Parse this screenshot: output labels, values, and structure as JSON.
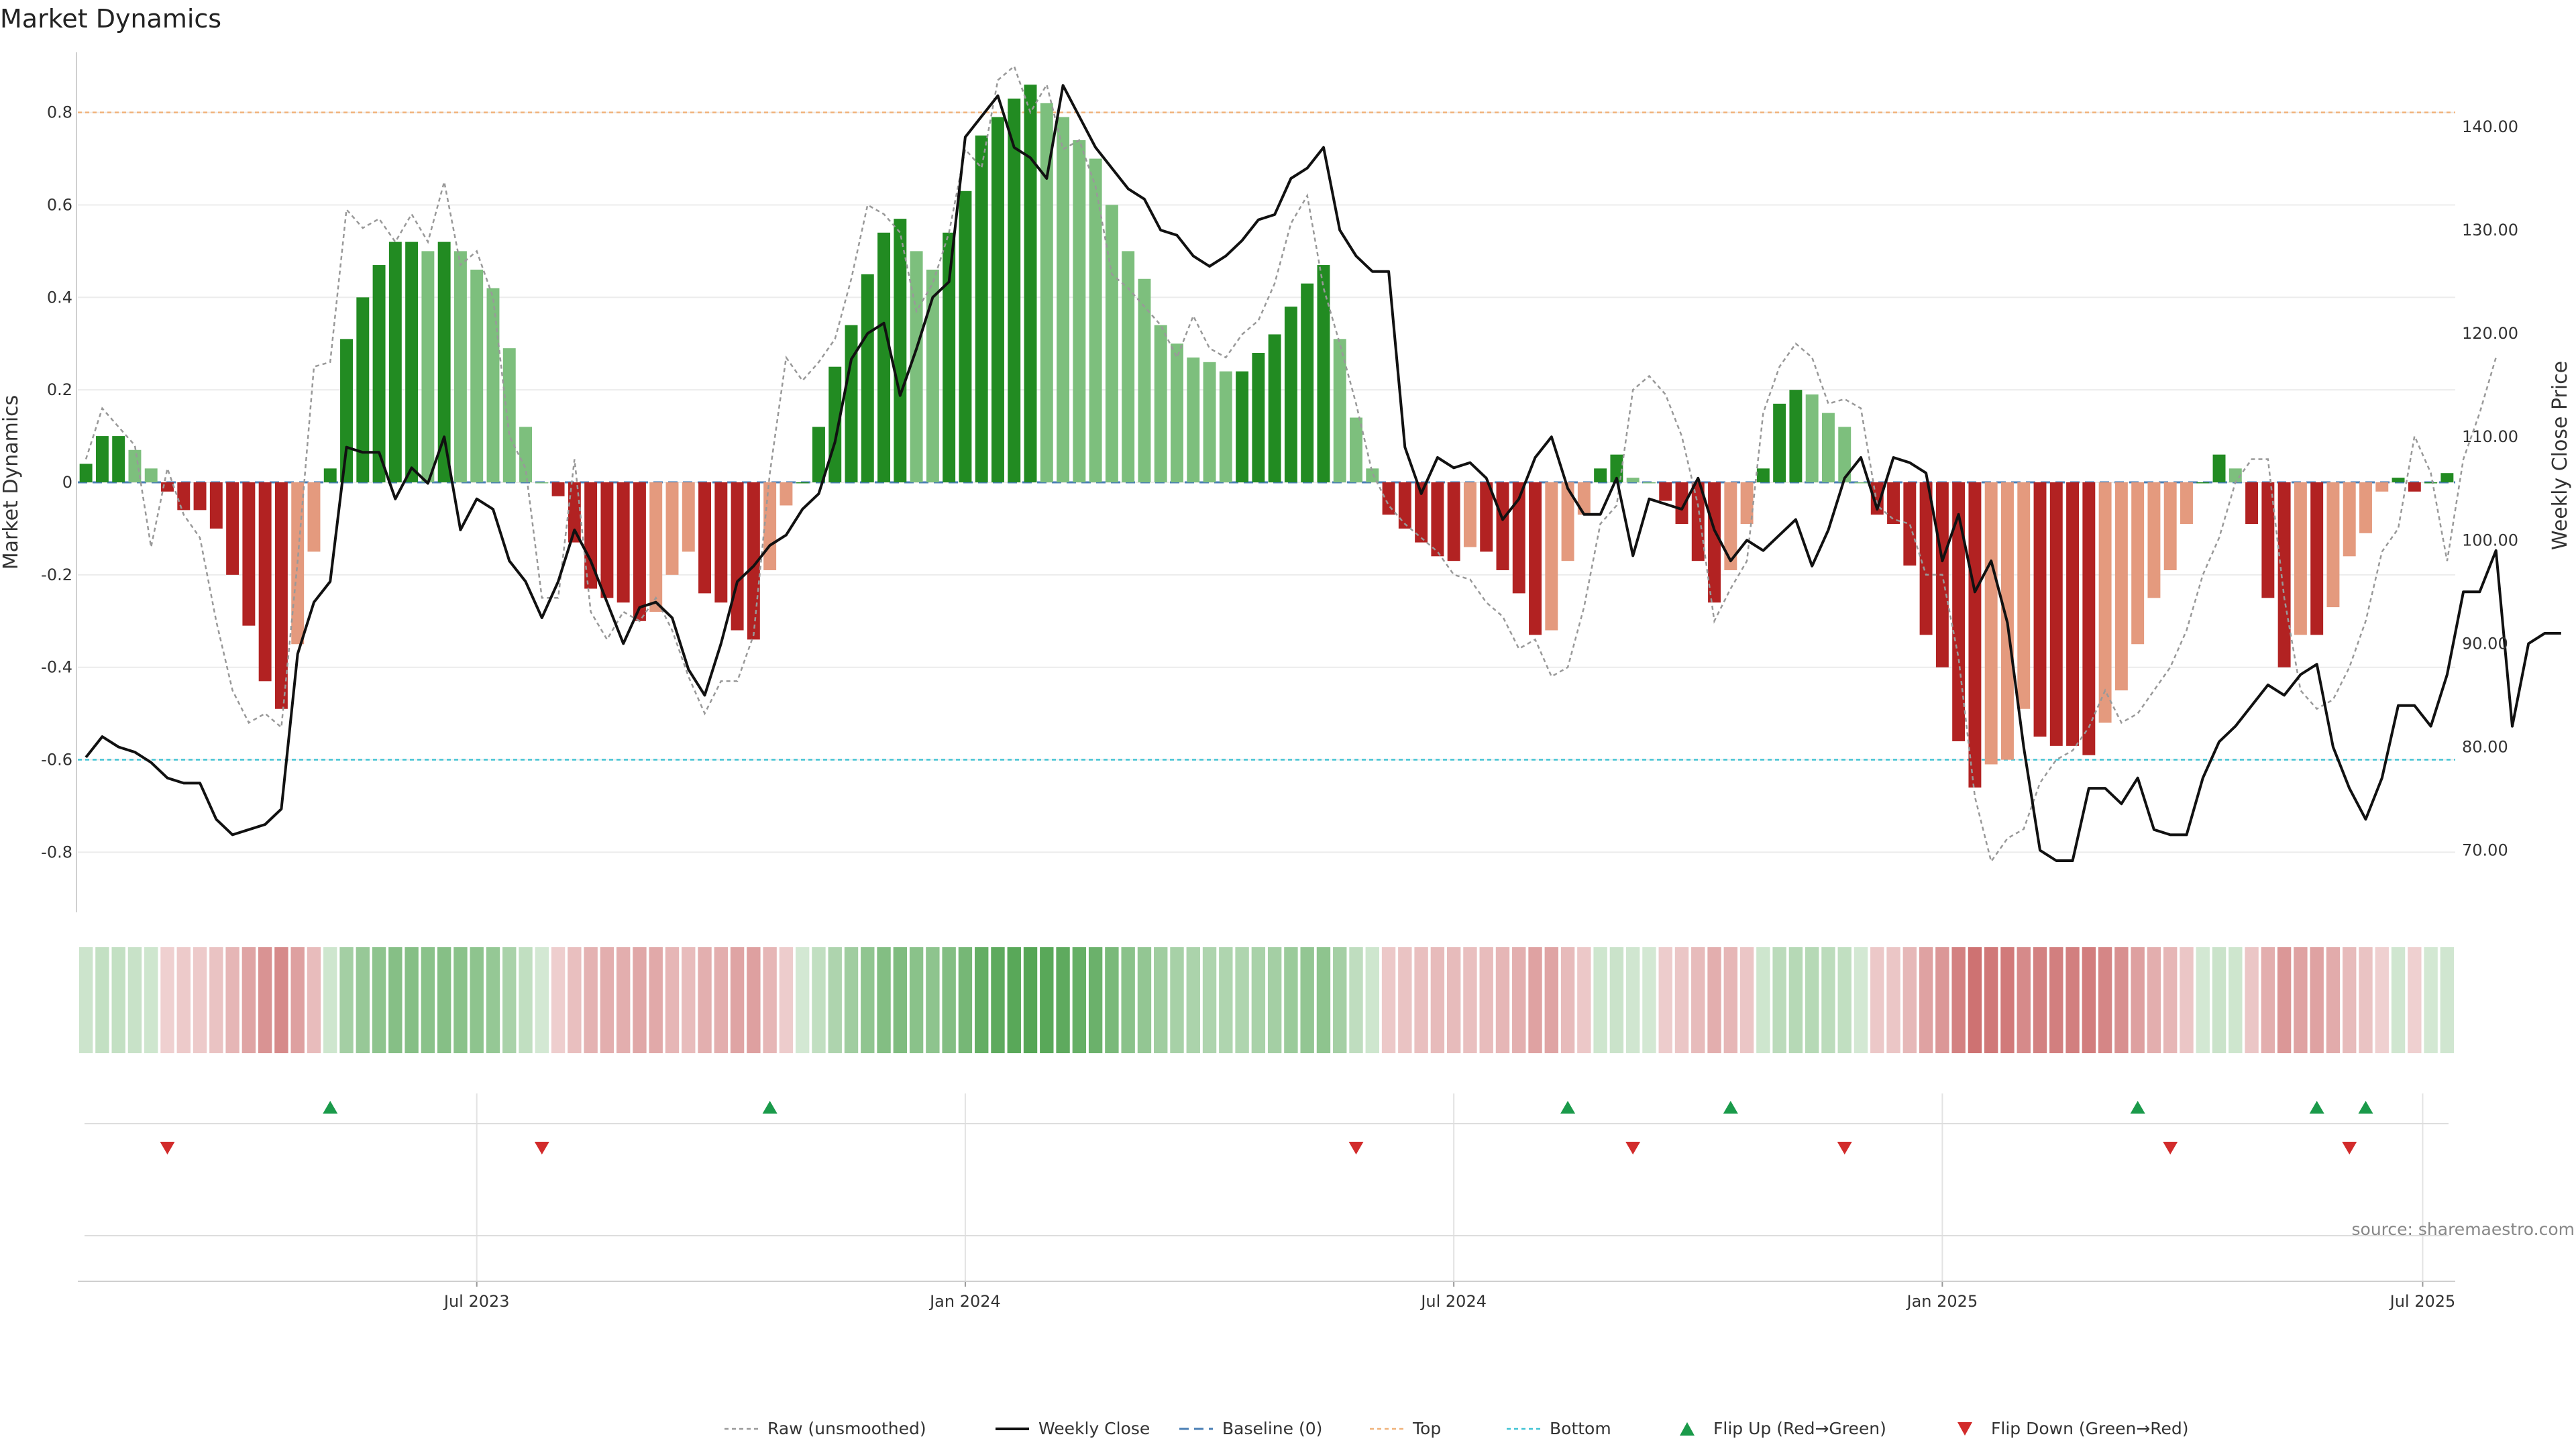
{
  "chart_data": {
    "type": "bar",
    "title": "Market Dynamics",
    "source": "source: sharemaestro.com",
    "ylabel_left": "Market Dynamics",
    "ylabel_right": "Weekly Close Price",
    "ylim_left": [
      -0.93,
      0.93
    ],
    "ylim_right": [
      64.0,
      147.2
    ],
    "yticks_left": [
      "-0.8",
      "-0.6",
      "-0.4",
      "-0.2",
      "0",
      "0.2",
      "0.4",
      "0.6",
      "0.8"
    ],
    "yticks_right": [
      "70.00",
      "80.00",
      "90.00",
      "100.00",
      "110.00",
      "120.00",
      "130.00",
      "140.00"
    ],
    "x_ticks": [
      "Jul 2023",
      "Jan 2024",
      "Jul 2024",
      "Jan 2025",
      "Jul 2025"
    ],
    "x_tick_week_index": [
      24.5,
      54.5,
      84.5,
      114.5,
      144.0
    ],
    "top_line": 0.8,
    "bottom_line": -0.6,
    "baseline": 0,
    "values": [
      0.04,
      0.1,
      0.1,
      0.07,
      0.03,
      -0.02,
      -0.06,
      -0.06,
      -0.1,
      -0.2,
      -0.31,
      -0.43,
      -0.49,
      -0.35,
      -0.15,
      0.03,
      0.31,
      0.4,
      0.47,
      0.52,
      0.52,
      0.5,
      0.52,
      0.5,
      0.46,
      0.42,
      0.29,
      0.12,
      0.0,
      -0.03,
      -0.13,
      -0.23,
      -0.25,
      -0.26,
      -0.3,
      -0.28,
      -0.2,
      -0.15,
      -0.24,
      -0.26,
      -0.32,
      -0.34,
      -0.19,
      -0.05,
      0.0,
      0.12,
      0.25,
      0.34,
      0.45,
      0.54,
      0.57,
      0.5,
      0.46,
      0.54,
      0.63,
      0.75,
      0.79,
      0.83,
      0.86,
      0.82,
      0.79,
      0.74,
      0.7,
      0.6,
      0.5,
      0.44,
      0.34,
      0.3,
      0.27,
      0.26,
      0.24,
      0.24,
      0.28,
      0.32,
      0.38,
      0.43,
      0.47,
      0.31,
      0.14,
      0.03,
      -0.07,
      -0.1,
      -0.13,
      -0.16,
      -0.17,
      -0.14,
      -0.15,
      -0.19,
      -0.24,
      -0.33,
      -0.32,
      -0.17,
      -0.07,
      0.03,
      0.06,
      0.01,
      0.0,
      -0.04,
      -0.09,
      -0.17,
      -0.26,
      -0.19,
      -0.09,
      0.03,
      0.17,
      0.2,
      0.19,
      0.15,
      0.12,
      0.0,
      -0.07,
      -0.09,
      -0.18,
      -0.33,
      -0.4,
      -0.56,
      -0.66,
      -0.61,
      -0.6,
      -0.49,
      -0.55,
      -0.57,
      -0.57,
      -0.59,
      -0.52,
      -0.45,
      -0.35,
      -0.25,
      -0.19,
      -0.09,
      0.0,
      0.06,
      0.03,
      -0.09,
      -0.25,
      -0.4,
      -0.33,
      -0.33,
      -0.27,
      -0.16,
      -0.11,
      -0.02,
      0.01,
      -0.02,
      0.0,
      0.02
    ],
    "raw_values": [
      0.05,
      0.16,
      0.12,
      0.08,
      -0.14,
      0.03,
      -0.07,
      -0.12,
      -0.3,
      -0.45,
      -0.52,
      -0.5,
      -0.53,
      -0.17,
      0.25,
      0.26,
      0.59,
      0.55,
      0.57,
      0.52,
      0.58,
      0.52,
      0.65,
      0.47,
      0.5,
      0.4,
      0.1,
      0.03,
      -0.25,
      -0.25,
      0.05,
      -0.28,
      -0.34,
      -0.28,
      -0.3,
      -0.25,
      -0.32,
      -0.42,
      -0.5,
      -0.43,
      -0.43,
      -0.33,
      0.02,
      0.27,
      0.22,
      0.26,
      0.31,
      0.44,
      0.6,
      0.58,
      0.54,
      0.37,
      0.43,
      0.54,
      0.72,
      0.68,
      0.87,
      0.9,
      0.8,
      0.86,
      0.72,
      0.74,
      0.64,
      0.45,
      0.42,
      0.38,
      0.34,
      0.27,
      0.36,
      0.29,
      0.27,
      0.32,
      0.35,
      0.43,
      0.56,
      0.62,
      0.42,
      0.3,
      0.17,
      0.02,
      -0.05,
      -0.09,
      -0.12,
      -0.15,
      -0.2,
      -0.21,
      -0.26,
      -0.29,
      -0.36,
      -0.34,
      -0.42,
      -0.4,
      -0.27,
      -0.09,
      -0.05,
      0.2,
      0.23,
      0.19,
      0.1,
      -0.05,
      -0.3,
      -0.23,
      -0.17,
      0.15,
      0.25,
      0.3,
      0.27,
      0.17,
      0.18,
      0.16,
      -0.05,
      -0.08,
      -0.09,
      -0.2,
      -0.2,
      -0.38,
      -0.68,
      -0.82,
      -0.77,
      -0.75,
      -0.65,
      -0.6,
      -0.58,
      -0.53,
      -0.45,
      -0.52,
      -0.5,
      -0.45,
      -0.4,
      -0.32,
      -0.2,
      -0.12,
      0.0,
      0.05,
      0.05,
      -0.25,
      -0.45,
      -0.49,
      -0.47,
      -0.4,
      -0.3,
      -0.15,
      -0.1,
      0.1,
      0.02,
      -0.17,
      0.05,
      0.15,
      0.27
    ],
    "weekly_close": [
      79,
      81,
      80,
      79.5,
      78.5,
      77,
      76.5,
      76.5,
      73,
      71.5,
      72,
      72.5,
      74,
      89,
      94,
      96,
      109,
      108.5,
      108.5,
      104,
      107,
      105.5,
      110,
      101,
      104,
      103,
      98,
      96,
      92.5,
      96,
      101,
      98,
      94,
      90,
      93.5,
      94,
      92.5,
      87.5,
      85,
      90,
      96,
      97.5,
      99.5,
      100.5,
      103,
      104.5,
      109.5,
      117.5,
      120,
      121,
      114,
      118.5,
      123.5,
      125,
      139,
      141,
      143,
      138,
      137,
      135,
      144,
      141,
      138,
      136,
      134,
      133,
      130,
      129.5,
      127.5,
      126.5,
      127.5,
      129,
      131,
      131.5,
      135,
      136,
      138,
      130,
      127.5,
      126,
      126,
      109,
      104.5,
      108,
      107,
      107.5,
      106,
      102,
      104,
      108,
      110,
      105,
      102.5,
      102.5,
      106,
      98.5,
      104,
      103.5,
      103,
      106,
      101,
      98,
      100,
      99,
      100.5,
      102,
      97.5,
      101,
      106,
      108,
      103,
      108,
      107.5,
      106.5,
      98,
      102.5,
      95,
      98,
      92,
      80,
      70,
      69,
      69,
      76,
      76,
      74.5,
      77,
      72,
      71.5,
      71.5,
      77,
      80.5,
      82,
      84,
      86,
      85,
      87,
      88,
      80,
      76,
      73,
      77,
      84,
      84,
      82,
      87,
      95,
      95,
      99,
      82,
      90,
      91,
      91
    ],
    "weekly_close_x_offset": 0,
    "flip_up_weeks": [
      15,
      42,
      91,
      101,
      126,
      137,
      140
    ],
    "flip_down_weeks": [
      5,
      28,
      78,
      95,
      108,
      128,
      139
    ],
    "legend": [
      "Raw (unsmoothed)",
      "Weekly Close",
      "Baseline (0)",
      "Top",
      "Bottom",
      "Flip Up (Red→Green)",
      "Flip Down (Green→Red)"
    ],
    "colors": {
      "green_dark": "#228b22",
      "green_light": "#7dbf7d",
      "red_dark": "#b22222",
      "red_light": "#e49a7e",
      "top_line": "#f0b27a",
      "bottom_line": "#40c4d4",
      "baseline": "#4a7fb5",
      "raw": "#999999",
      "close": "#111111",
      "flip_up": "#1a9a4a",
      "flip_down": "#d22b2b"
    }
  }
}
